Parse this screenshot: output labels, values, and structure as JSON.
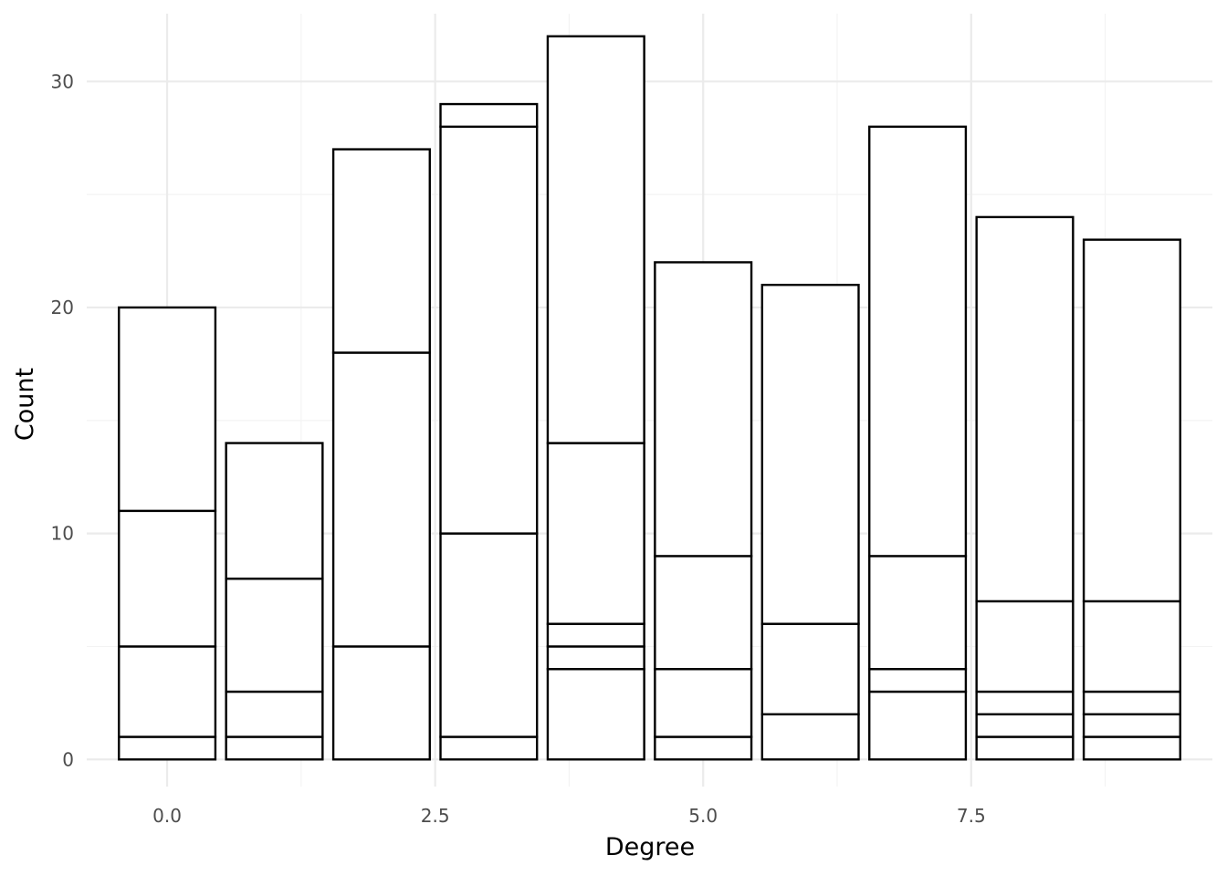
{
  "chart_data": {
    "type": "bar",
    "stacked": true,
    "xlabel": "Degree",
    "ylabel": "Count",
    "xlim": [
      -0.75,
      9.75
    ],
    "ylim": [
      -1.2,
      33
    ],
    "x_ticks": [
      0.0,
      2.5,
      5.0,
      7.5
    ],
    "x_tick_labels": [
      "0.0",
      "2.5",
      "5.0",
      "7.5"
    ],
    "y_ticks": [
      0,
      10,
      20,
      30
    ],
    "y_tick_labels": [
      "0",
      "10",
      "20",
      "30"
    ],
    "grid": true,
    "bar_width": 0.9,
    "bars": [
      {
        "x": 0,
        "boundaries": [
          0,
          1,
          5,
          11,
          20
        ],
        "total": 20
      },
      {
        "x": 1,
        "boundaries": [
          0,
          1,
          3,
          8,
          14
        ],
        "total": 14
      },
      {
        "x": 2,
        "boundaries": [
          0,
          5,
          18,
          27
        ],
        "total": 27
      },
      {
        "x": 3,
        "boundaries": [
          0,
          1,
          10,
          28,
          29
        ],
        "total": 29
      },
      {
        "x": 4,
        "boundaries": [
          0,
          4,
          5,
          6,
          14,
          32
        ],
        "total": 32
      },
      {
        "x": 5,
        "boundaries": [
          0,
          1,
          4,
          9,
          22
        ],
        "total": 22
      },
      {
        "x": 6,
        "boundaries": [
          0,
          2,
          6,
          21
        ],
        "total": 21
      },
      {
        "x": 7,
        "boundaries": [
          0,
          3,
          4,
          9,
          28
        ],
        "total": 28
      },
      {
        "x": 8,
        "boundaries": [
          0,
          1,
          2,
          3,
          7,
          24
        ],
        "total": 24
      },
      {
        "x": 9,
        "boundaries": [
          0,
          1,
          2,
          3,
          7,
          23
        ],
        "total": 23
      }
    ]
  }
}
